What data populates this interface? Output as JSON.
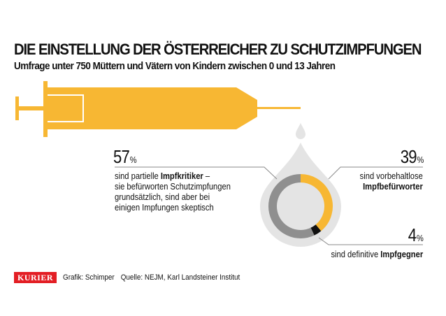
{
  "header": {
    "title": "DIE EINSTELLUNG DER ÖSTERREICHER ZU SCHUTZIMPFUNGEN",
    "subtitle": "Umfrage unter 750 Müttern und Vätern von Kindern zwischen 0 und 13 Jahren"
  },
  "colors": {
    "syringe": "#f7b733",
    "drop": "#e4e4e4",
    "ring_gray": "#8f8f8f",
    "ring_yellow": "#f7b733",
    "ring_black": "#111111",
    "logo_red": "#e31e24"
  },
  "chart_data": {
    "type": "pie",
    "title": "DIE EINSTELLUNG DER ÖSTERREICHER ZU SCHUTZIMPFUNGEN",
    "series": [
      {
        "value": 57,
        "pct_label": "57",
        "lines": [
          [
            {
              "t": "sind partielle ",
              "b": false
            },
            {
              "t": "Impfkritiker",
              "b": true
            },
            {
              "t": " –",
              "b": false
            }
          ],
          [
            {
              "t": "sie befürworten Schutzimpfungen",
              "b": false
            }
          ],
          [
            {
              "t": "grundsätzlich, sind aber bei",
              "b": false
            }
          ],
          [
            {
              "t": "einigen Impfungen skeptisch",
              "b": false
            }
          ]
        ],
        "color": "#8f8f8f"
      },
      {
        "value": 39,
        "pct_label": "39",
        "lines": [
          [
            {
              "t": "sind vorbehaltlose",
              "b": false
            }
          ],
          [
            {
              "t": "Impfbefürworter",
              "b": true
            }
          ]
        ],
        "color": "#f7b733"
      },
      {
        "value": 4,
        "pct_label": "4",
        "lines": [
          [
            {
              "t": "sind definitive ",
              "b": false
            },
            {
              "t": "Impfgegner",
              "b": true
            }
          ]
        ],
        "color": "#111111"
      }
    ],
    "percent_symbol": "%"
  },
  "footer": {
    "logo": "KURIER",
    "graphic_credit": "Grafik: Schimper",
    "source": "Quelle: NEJM, Karl Landsteiner Institut"
  }
}
